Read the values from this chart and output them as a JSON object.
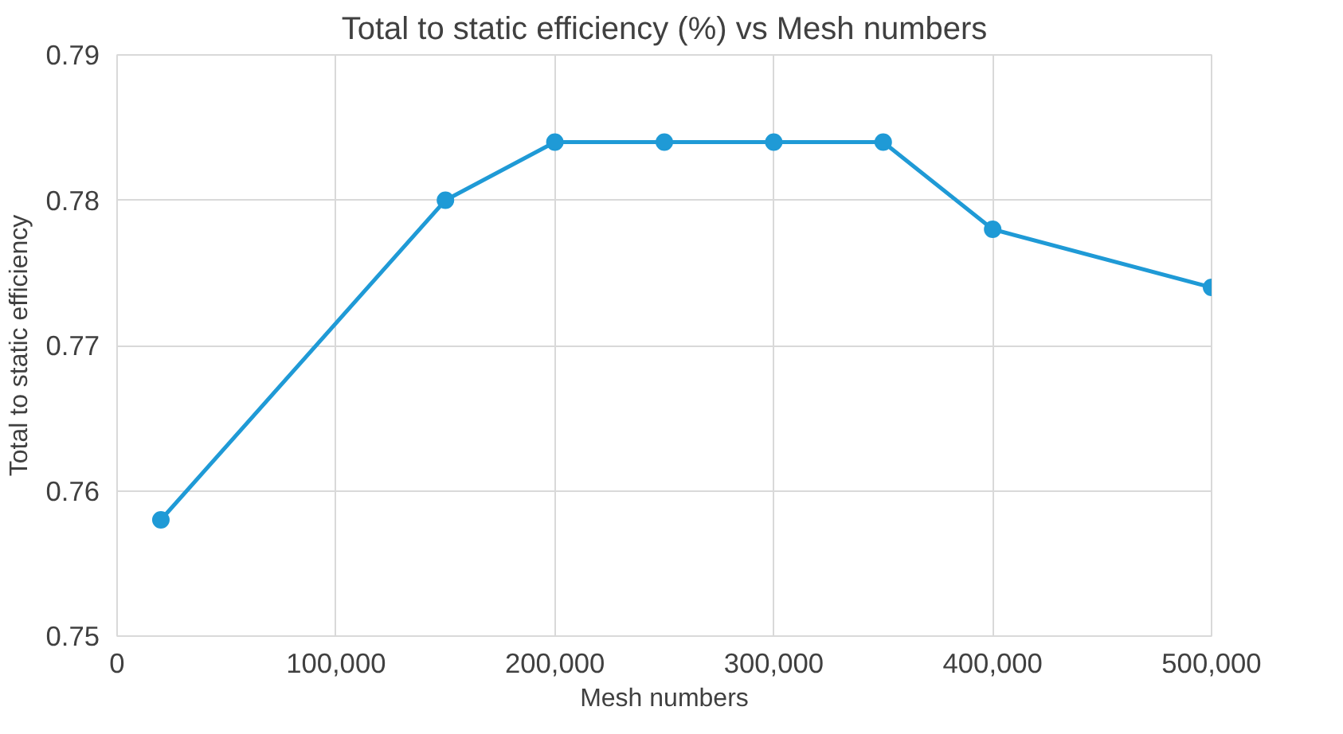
{
  "chart_data": {
    "type": "line",
    "title": "Total to static efficiency (%) vs Mesh numbers",
    "xlabel": "Mesh numbers",
    "ylabel": "Total to static efficiency",
    "x": [
      20000,
      150000,
      200000,
      250000,
      300000,
      350000,
      400000,
      500000
    ],
    "series": [
      {
        "color": "#1f9ad6",
        "values": [
          0.758,
          0.78,
          0.784,
          0.784,
          0.784,
          0.784,
          0.778,
          0.774
        ]
      }
    ],
    "xlim": [
      0,
      500000
    ],
    "ylim": [
      0.75,
      0.79
    ],
    "xticks": [
      0,
      {
        "value": 100000,
        "label": "100,000"
      },
      {
        "value": 200000,
        "label": "200,000"
      },
      {
        "value": 300000,
        "label": "300,000"
      },
      {
        "value": 400000,
        "label": "400,000"
      },
      {
        "value": 500000,
        "label": "500,000"
      }
    ],
    "yticks": [
      {
        "value": 0.75,
        "label": "0.75"
      },
      {
        "value": 0.76,
        "label": "0.76"
      },
      {
        "value": 0.77,
        "label": "0.77"
      },
      {
        "value": 0.78,
        "label": "0.78"
      },
      {
        "value": 0.79,
        "label": "0.79"
      }
    ],
    "grid": true,
    "marker": "circle",
    "line_style": "solid"
  }
}
